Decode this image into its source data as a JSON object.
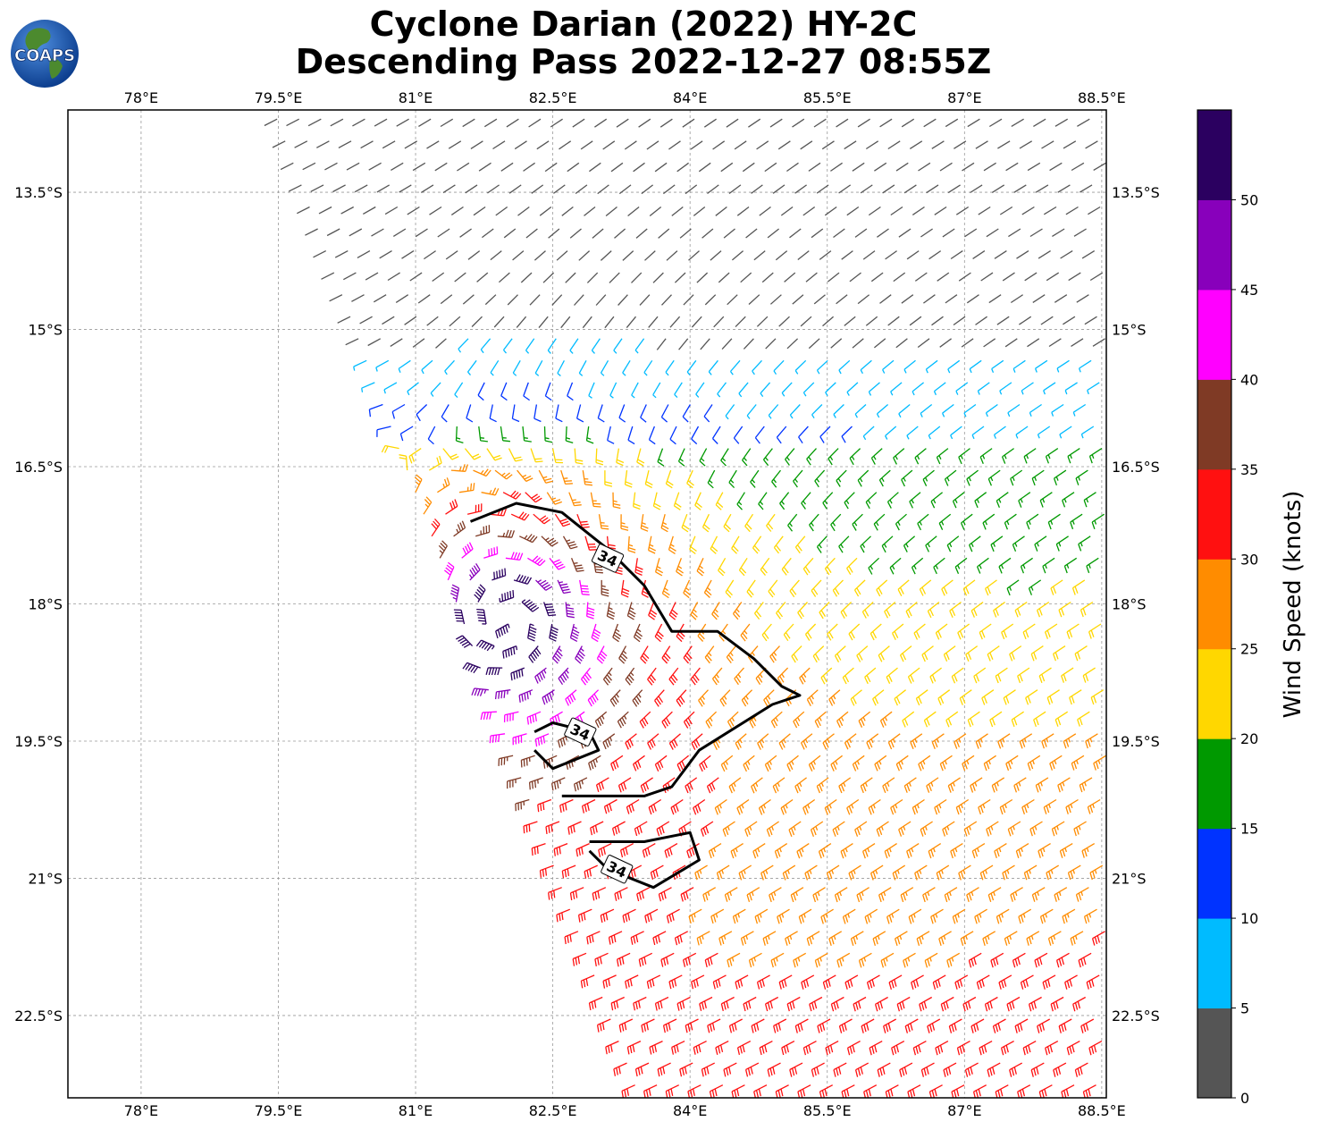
{
  "title": {
    "line1": "Cyclone Darian (2022) HY-2C",
    "line2": "Descending Pass 2022-12-27 08:55Z"
  },
  "logo": {
    "text": "COAPS",
    "icon": "globe-icon"
  },
  "map": {
    "projection": "plate-carree",
    "lon_range": [
      77.2,
      88.55
    ],
    "lat_range": [
      -23.4,
      -12.6
    ],
    "lon_ticks": [
      "78°E",
      "79.5°E",
      "81°E",
      "82.5°E",
      "84°E",
      "85.5°E",
      "87°E",
      "88.5°E"
    ],
    "lat_ticks": [
      "13.5°S",
      "15°S",
      "16.5°S",
      "18°S",
      "19.5°S",
      "21°S",
      "22.5°S"
    ],
    "gridlines": true
  },
  "colorbar": {
    "label": "Wind Speed (knots)",
    "ticks": [
      "0",
      "5",
      "10",
      "15",
      "20",
      "25",
      "30",
      "35",
      "40",
      "45",
      "50"
    ],
    "bins": [
      {
        "min": 0,
        "max": 5,
        "color": "#555555"
      },
      {
        "min": 5,
        "max": 10,
        "color": "#00bbff"
      },
      {
        "min": 10,
        "max": 15,
        "color": "#0033ff"
      },
      {
        "min": 15,
        "max": 20,
        "color": "#009900"
      },
      {
        "min": 20,
        "max": 25,
        "color": "#ffd700"
      },
      {
        "min": 25,
        "max": 30,
        "color": "#ff8c00"
      },
      {
        "min": 30,
        "max": 35,
        "color": "#ff1010"
      },
      {
        "min": 35,
        "max": 40,
        "color": "#7f3a25"
      },
      {
        "min": 40,
        "max": 45,
        "color": "#ff00ff"
      },
      {
        "min": 45,
        "max": 50,
        "color": "#8800bb"
      },
      {
        "min": 50,
        "max": 55,
        "color": "#2b0060"
      }
    ]
  },
  "cyclone": {
    "center_lon": 82.0,
    "center_lat": -18.2,
    "rotation": "clockwise"
  },
  "swath": {
    "west_edge": [
      [
        79.4,
        -12.6
      ],
      [
        83.4,
        -23.4
      ]
    ]
  },
  "contours": {
    "level_label": "34",
    "lines": [
      [
        [
          81.6,
          -17.1
        ],
        [
          82.1,
          -16.9
        ],
        [
          82.6,
          -17.0
        ],
        [
          83.1,
          -17.4
        ],
        [
          83.5,
          -17.8
        ],
        [
          83.8,
          -18.3
        ],
        [
          84.3,
          -18.3
        ],
        [
          84.7,
          -18.6
        ],
        [
          85.0,
          -18.9
        ],
        [
          85.2,
          -19.0
        ],
        [
          84.9,
          -19.1
        ],
        [
          84.1,
          -19.6
        ],
        [
          83.8,
          -20.0
        ],
        [
          83.5,
          -20.1
        ],
        [
          82.8,
          -20.1
        ],
        [
          82.6,
          -20.1
        ]
      ],
      [
        [
          82.3,
          -19.4
        ],
        [
          82.5,
          -19.3
        ],
        [
          82.9,
          -19.4
        ],
        [
          83.0,
          -19.6
        ],
        [
          82.5,
          -19.8
        ],
        [
          82.3,
          -19.6
        ]
      ],
      [
        [
          82.9,
          -20.6
        ],
        [
          83.5,
          -20.6
        ],
        [
          84.0,
          -20.5
        ],
        [
          84.1,
          -20.8
        ],
        [
          83.6,
          -21.1
        ],
        [
          83.1,
          -20.9
        ],
        [
          82.9,
          -20.7
        ]
      ]
    ],
    "label_positions": [
      [
        83.1,
        -17.5
      ],
      [
        82.8,
        -19.4
      ],
      [
        83.2,
        -20.9
      ]
    ]
  }
}
